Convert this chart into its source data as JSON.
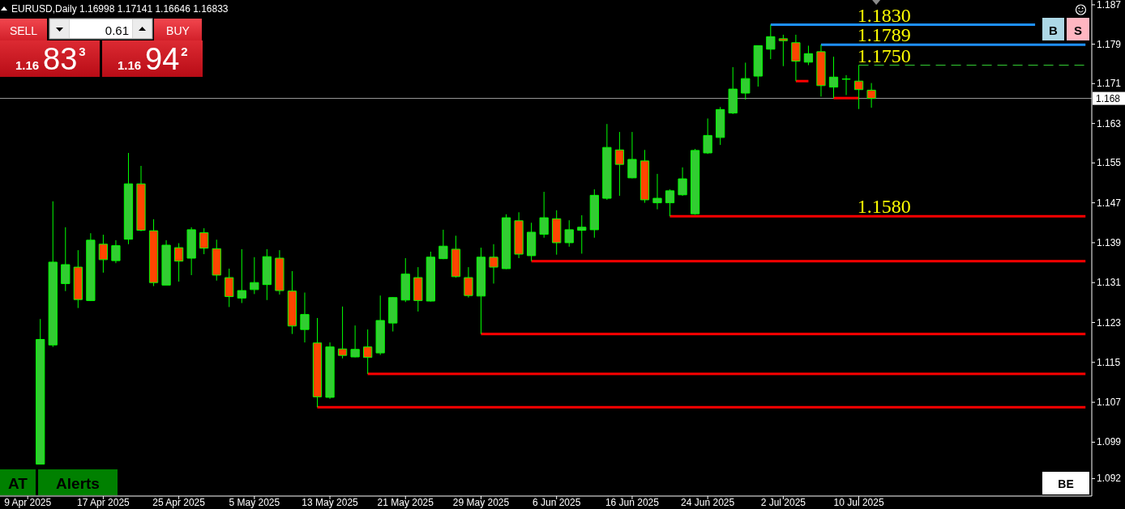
{
  "chart_data": {
    "type": "candlestick",
    "title": "EURUSD,Daily 1.16998 1.17141 1.16646 1.16833",
    "categories": [
      "9 Apr 2025",
      null,
      null,
      null,
      null,
      null,
      "17 Apr 2025",
      null,
      null,
      null,
      null,
      null,
      "25 Apr 2025",
      null,
      null,
      null,
      null,
      null,
      "5 May 2025",
      null,
      null,
      null,
      null,
      null,
      "13 May 2025",
      null,
      null,
      null,
      null,
      null,
      "21 May 2025",
      null,
      null,
      null,
      null,
      null,
      "29 May 2025",
      null,
      null,
      null,
      null,
      null,
      "6 Jun 2025",
      null,
      null,
      null,
      null,
      null,
      "16 Jun 2025",
      null,
      null,
      null,
      null,
      null,
      "24 Jun 2025",
      null,
      null,
      null,
      null,
      null,
      "2 Jul 2025",
      null,
      null,
      null,
      null,
      null,
      "10 Jul 2025",
      null,
      null,
      null,
      null,
      null,
      null,
      null,
      null,
      null,
      null,
      null,
      null,
      null,
      null,
      null,
      null,
      null,
      null
    ],
    "ohlc": [
      null,
      [
        1.095,
        1.1241,
        1.095,
        1.12
      ],
      [
        1.1189,
        1.1477,
        1.1185,
        1.1355
      ],
      [
        1.1312,
        1.1425,
        1.1297,
        1.135
      ],
      [
        1.1345,
        1.1379,
        1.1263,
        1.128
      ],
      [
        1.1278,
        1.1413,
        1.1277,
        1.1399
      ],
      [
        1.1391,
        1.141,
        1.1334,
        1.136
      ],
      [
        1.1358,
        1.1399,
        1.1353,
        1.1388
      ],
      [
        1.1401,
        1.1574,
        1.1391,
        1.1512
      ],
      [
        1.1512,
        1.1548,
        1.1417,
        1.1419
      ],
      [
        1.1418,
        1.1441,
        1.1307,
        1.1314
      ],
      [
        1.1309,
        1.1399,
        1.1309,
        1.1389
      ],
      [
        1.1384,
        1.1393,
        1.1316,
        1.1357
      ],
      [
        1.1363,
        1.1425,
        1.1329,
        1.142
      ],
      [
        1.1414,
        1.1423,
        1.1371,
        1.1383
      ],
      [
        1.1382,
        1.14,
        1.1318,
        1.1329
      ],
      [
        1.1324,
        1.1342,
        1.1265,
        1.1286
      ],
      [
        1.1283,
        1.1381,
        1.1273,
        1.1298
      ],
      [
        1.13,
        1.1365,
        1.1291,
        1.1314
      ],
      [
        1.131,
        1.1381,
        1.1279,
        1.1366
      ],
      [
        1.1363,
        1.1379,
        1.129,
        1.1298
      ],
      [
        1.1297,
        1.1337,
        1.1211,
        1.1227
      ],
      [
        1.122,
        1.1294,
        1.1194,
        1.125
      ],
      [
        1.1193,
        1.1243,
        1.1064,
        1.1085
      ],
      [
        1.1084,
        1.1194,
        1.1081,
        1.1185
      ],
      [
        1.1181,
        1.1266,
        1.1162,
        1.1168
      ],
      [
        1.1165,
        1.1228,
        1.1164,
        1.118
      ],
      [
        1.1185,
        1.122,
        1.1131,
        1.1164
      ],
      [
        1.1173,
        1.1288,
        1.1169,
        1.1238
      ],
      [
        1.1233,
        1.1285,
        1.1216,
        1.1284
      ],
      [
        1.1279,
        1.1363,
        1.1275,
        1.1331
      ],
      [
        1.1324,
        1.1345,
        1.1256,
        1.1278
      ],
      [
        1.1277,
        1.1376,
        1.1276,
        1.1365
      ],
      [
        1.1362,
        1.142,
        1.1361,
        1.1387
      ],
      [
        1.1381,
        1.1408,
        1.1324,
        1.1326
      ],
      [
        1.1324,
        1.1345,
        1.1284,
        1.1288
      ],
      [
        1.1287,
        1.1384,
        1.1211,
        1.1365
      ],
      [
        1.1365,
        1.1391,
        1.1312,
        1.1345
      ],
      [
        1.1342,
        1.1451,
        1.1341,
        1.1444
      ],
      [
        1.1438,
        1.1455,
        1.1363,
        1.1371
      ],
      [
        1.1368,
        1.1434,
        1.1357,
        1.1415
      ],
      [
        1.1411,
        1.1496,
        1.1404,
        1.1444
      ],
      [
        1.1442,
        1.1459,
        1.137,
        1.1394
      ],
      [
        1.1394,
        1.1439,
        1.1386,
        1.142
      ],
      [
        1.1419,
        1.1449,
        1.1372,
        1.1425
      ],
      [
        1.142,
        1.1501,
        1.1404,
        1.1489
      ],
      [
        1.1483,
        1.1632,
        1.148,
        1.1585
      ],
      [
        1.158,
        1.1616,
        1.1488,
        1.1551
      ],
      [
        1.1524,
        1.1616,
        1.1523,
        1.1561
      ],
      [
        1.1558,
        1.158,
        1.1474,
        1.148
      ],
      [
        1.1474,
        1.1532,
        1.1461,
        1.1483
      ],
      [
        1.1474,
        1.1501,
        1.1447,
        1.1498
      ],
      [
        1.149,
        1.1545,
        1.1488,
        1.1522
      ],
      [
        1.1452,
        1.1582,
        1.145,
        1.1579
      ],
      [
        1.1574,
        1.1643,
        1.1572,
        1.1609
      ],
      [
        1.1605,
        1.1666,
        1.159,
        1.1661
      ],
      [
        1.1654,
        1.1746,
        1.1652,
        1.1702
      ],
      [
        1.1694,
        1.1755,
        1.1681,
        1.1723
      ],
      [
        1.1728,
        1.1789,
        1.1707,
        1.1789
      ],
      [
        1.1782,
        1.1831,
        1.1762,
        1.1807
      ],
      [
        1.1803,
        1.1811,
        1.1748,
        1.1799
      ],
      [
        1.1795,
        1.1811,
        1.1718,
        1.1758
      ],
      [
        1.1756,
        1.1789,
        1.175,
        1.1773
      ],
      [
        1.1777,
        1.1791,
        1.1687,
        1.1709
      ],
      [
        1.1706,
        1.1767,
        1.1684,
        1.1726
      ],
      [
        1.1722,
        1.173,
        1.169,
        1.1722
      ],
      [
        1.1718,
        1.175,
        1.1662,
        1.1701
      ],
      [
        1.16998,
        1.17141,
        1.16646,
        1.16833
      ],
      null,
      null,
      null,
      null,
      null,
      null,
      null,
      null,
      null,
      null,
      null,
      null,
      null,
      null,
      null,
      null,
      null
    ],
    "color": "#00ff00",
    "colors": [
      null,
      "#32cd32",
      "#32cd32",
      "#32cd32",
      "#ff4500",
      "#32cd32",
      "#ff4500",
      "#32cd32",
      "#32cd32",
      "#ff4500",
      "#ff4500",
      "#32cd32",
      "#ff4500",
      "#32cd32",
      "#ff4500",
      "#ff4500",
      "#ff4500",
      "#32cd32",
      "#32cd32",
      "#32cd32",
      "#ff4500",
      "#ff4500",
      "#32cd32",
      "#ff4500",
      "#32cd32",
      "#ff4500",
      "#32cd32",
      "#ff4500",
      "#32cd32",
      "#32cd32",
      "#32cd32",
      "#ff4500",
      "#32cd32",
      "#32cd32",
      "#ff4500",
      "#ff4500",
      "#32cd32",
      "#ff4500",
      "#32cd32",
      "#ff4500",
      "#32cd32",
      "#32cd32",
      "#ff4500",
      "#32cd32",
      "#32cd32",
      "#32cd32",
      "#32cd32",
      "#ff4500",
      "#32cd32",
      "#ff4500",
      "#32cd32",
      "#32cd32",
      "#32cd32",
      "#32cd32",
      "#32cd32",
      "#32cd32",
      "#32cd32",
      "#32cd32",
      "#32cd32",
      "#32cd32",
      "#ff4500",
      "#ff4500",
      "#32cd32",
      "#ff4500",
      "#32cd32",
      "#00ff00",
      "#ff4500",
      "#ff4500",
      null,
      null,
      null,
      null,
      null,
      null,
      null,
      null,
      null,
      null,
      null,
      null,
      null,
      null,
      null,
      null,
      null
    ],
    "series": [
      {
        "type": "line",
        "color": "#ff0000",
        "values": [
          null,
          null,
          null,
          null,
          null,
          null,
          null,
          null,
          null,
          null,
          null,
          null,
          null,
          null,
          null,
          null,
          null,
          null,
          null,
          null,
          null,
          null,
          null,
          1.1064,
          1.1064,
          1.1064,
          1.1064,
          1.1064,
          1.1064,
          1.1064,
          1.1064,
          1.1064,
          1.1064,
          1.1064,
          1.1064,
          1.1064,
          1.1064,
          1.1064,
          1.1064,
          1.1064,
          1.1064,
          1.1064,
          1.1064,
          1.1064,
          1.1064,
          1.1064,
          1.1064,
          1.1064,
          1.1064,
          1.1064,
          1.1064,
          1.1064,
          1.1064,
          1.1064,
          1.1064,
          1.1064,
          1.1064,
          1.1064,
          1.1064,
          1.1064,
          1.1064,
          1.1064,
          1.1064,
          1.1064,
          1.1064,
          1.1064,
          1.1064,
          1.1064,
          1.1064,
          1.1064,
          1.1064,
          1.1064,
          1.1064,
          1.1064,
          1.1064,
          1.1064,
          1.1064,
          1.1064,
          1.1064,
          1.1064,
          1.1064,
          1.1064,
          1.1064,
          1.1064,
          1.1064
        ]
      },
      {
        "type": "line",
        "color": "#ff0000",
        "values": [
          null,
          null,
          null,
          null,
          null,
          null,
          null,
          null,
          null,
          null,
          null,
          null,
          null,
          null,
          null,
          null,
          null,
          null,
          null,
          null,
          null,
          null,
          null,
          null,
          null,
          null,
          null,
          1.1131,
          1.1131,
          1.1131,
          1.1131,
          1.1131,
          1.1131,
          1.1131,
          1.1131,
          1.1131,
          1.1131,
          1.1131,
          1.1131,
          1.1131,
          1.1131,
          1.1131,
          1.1131,
          1.1131,
          1.1131,
          1.1131,
          1.1131,
          1.1131,
          1.1131,
          1.1131,
          1.1131,
          1.1131,
          1.1131,
          1.1131,
          1.1131,
          1.1131,
          1.1131,
          1.1131,
          1.1131,
          1.1131,
          1.1131,
          1.1131,
          1.1131,
          1.1131,
          1.1131,
          1.1131,
          1.1131,
          1.1131,
          1.1131,
          1.1131,
          1.1131,
          1.1131,
          1.1131,
          1.1131,
          1.1131,
          1.1131,
          1.1131,
          1.1131,
          1.1131,
          1.1131,
          1.1131,
          1.1131,
          1.1131,
          1.1131,
          1.1131
        ]
      },
      {
        "type": "line",
        "color": "#ff0000",
        "values": [
          null,
          null,
          null,
          null,
          null,
          null,
          null,
          null,
          null,
          null,
          null,
          null,
          null,
          null,
          null,
          null,
          null,
          null,
          null,
          null,
          null,
          null,
          null,
          null,
          null,
          null,
          null,
          null,
          null,
          null,
          null,
          null,
          null,
          null,
          null,
          null,
          1.1211,
          1.1211,
          1.1211,
          1.1211,
          1.1211,
          1.1211,
          1.1211,
          1.1211,
          1.1211,
          1.1211,
          1.1211,
          1.1211,
          1.1211,
          1.1211,
          1.1211,
          1.1211,
          1.1211,
          1.1211,
          1.1211,
          1.1211,
          1.1211,
          1.1211,
          1.1211,
          1.1211,
          1.1211,
          1.1211,
          1.1211,
          1.1211,
          1.1211,
          1.1211,
          1.1211,
          1.1211,
          1.1211,
          1.1211,
          1.1211,
          1.1211,
          1.1211,
          1.1211,
          1.1211,
          1.1211,
          1.1211,
          1.1211,
          1.1211,
          1.1211,
          1.1211,
          1.1211,
          1.1211,
          1.1211,
          1.1211
        ]
      },
      {
        "type": "line",
        "color": "#ff0000",
        "values": [
          null,
          null,
          null,
          null,
          null,
          null,
          null,
          null,
          null,
          null,
          null,
          null,
          null,
          null,
          null,
          null,
          null,
          null,
          null,
          null,
          null,
          null,
          null,
          null,
          null,
          null,
          null,
          null,
          null,
          null,
          null,
          null,
          null,
          null,
          null,
          null,
          null,
          null,
          null,
          null,
          1.1357,
          1.1357,
          1.1357,
          1.1357,
          1.1357,
          1.1357,
          1.1357,
          1.1357,
          1.1357,
          1.1357,
          1.1357,
          1.1357,
          1.1357,
          1.1357,
          1.1357,
          1.1357,
          1.1357,
          1.1357,
          1.1357,
          1.1357,
          1.1357,
          1.1357,
          1.1357,
          1.1357,
          1.1357,
          1.1357,
          1.1357,
          1.1357,
          1.1357,
          1.1357,
          1.1357,
          1.1357,
          1.1357,
          1.1357,
          1.1357,
          1.1357,
          1.1357,
          1.1357,
          1.1357,
          1.1357,
          1.1357,
          1.1357,
          1.1357,
          1.1357,
          1.1357
        ]
      },
      {
        "type": "line",
        "name": "1.1580",
        "color": "#ff0000",
        "values": [
          null,
          null,
          null,
          null,
          null,
          null,
          null,
          null,
          null,
          null,
          null,
          null,
          null,
          null,
          null,
          null,
          null,
          null,
          null,
          null,
          null,
          null,
          null,
          null,
          null,
          null,
          null,
          null,
          null,
          null,
          null,
          null,
          null,
          null,
          null,
          null,
          null,
          null,
          null,
          null,
          null,
          null,
          null,
          null,
          null,
          null,
          null,
          null,
          null,
          null,
          null,
          1.1447,
          1.1447,
          1.1447,
          1.1447,
          1.1447,
          1.1447,
          1.1447,
          1.1447,
          1.1447,
          1.1447,
          1.1447,
          1.1447,
          1.1447,
          1.1447,
          1.1447,
          1.1447,
          1.1447,
          1.1447,
          1.1447,
          1.1447,
          1.1447,
          1.1447,
          1.1447,
          1.1447,
          1.1447,
          1.1447,
          1.1447,
          1.1447,
          1.1447,
          1.1447,
          1.1447,
          1.1447,
          1.1447,
          1.1447
        ]
      },
      {
        "type": "line",
        "name": "1.1830",
        "color": "#1e90ff",
        "values": [
          null,
          null,
          null,
          null,
          null,
          null,
          null,
          null,
          null,
          null,
          null,
          null,
          null,
          null,
          null,
          null,
          null,
          null,
          null,
          null,
          null,
          null,
          null,
          null,
          null,
          null,
          null,
          null,
          null,
          null,
          null,
          null,
          null,
          null,
          null,
          null,
          null,
          null,
          null,
          null,
          null,
          null,
          null,
          null,
          null,
          null,
          null,
          null,
          null,
          null,
          null,
          null,
          null,
          null,
          null,
          null,
          null,
          null,
          null,
          1.1831,
          1.1831,
          1.1831,
          1.1831,
          1.1831,
          1.1831,
          1.1831,
          1.1831,
          1.1831,
          1.1831,
          1.1831,
          1.1831,
          1.1831,
          1.1831,
          1.1831,
          1.1831,
          1.1831,
          1.1831,
          1.1831,
          1.1831,
          1.1831,
          1.1831,
          null,
          null,
          null,
          null
        ]
      },
      {
        "type": "line",
        "name": "1.1789",
        "color": "#1e90ff",
        "values": [
          null,
          null,
          null,
          null,
          null,
          null,
          null,
          null,
          null,
          null,
          null,
          null,
          null,
          null,
          null,
          null,
          null,
          null,
          null,
          null,
          null,
          null,
          null,
          null,
          null,
          null,
          null,
          null,
          null,
          null,
          null,
          null,
          null,
          null,
          null,
          null,
          null,
          null,
          null,
          null,
          null,
          null,
          null,
          null,
          null,
          null,
          null,
          null,
          null,
          null,
          null,
          null,
          null,
          null,
          null,
          null,
          null,
          null,
          null,
          null,
          null,
          null,
          null,
          1.1791,
          1.1791,
          1.1791,
          1.1791,
          1.1791,
          1.1791,
          1.1791,
          1.1791,
          1.1791,
          1.1791,
          1.1791,
          1.1791,
          1.1791,
          1.1791,
          1.1791,
          1.1791,
          1.1791,
          1.1791,
          1.1791,
          1.1791,
          1.1791,
          1.1791
        ]
      },
      {
        "type": "line",
        "name": "1.1750",
        "color": "#32cd32",
        "line_style": "dashed",
        "values": [
          null,
          null,
          null,
          null,
          null,
          null,
          null,
          null,
          null,
          null,
          null,
          null,
          null,
          null,
          null,
          null,
          null,
          null,
          null,
          null,
          null,
          null,
          null,
          null,
          null,
          null,
          null,
          null,
          null,
          null,
          null,
          null,
          null,
          null,
          null,
          null,
          null,
          null,
          null,
          null,
          null,
          null,
          null,
          null,
          null,
          null,
          null,
          null,
          null,
          null,
          null,
          null,
          null,
          null,
          null,
          null,
          null,
          null,
          null,
          null,
          null,
          null,
          null,
          null,
          null,
          null,
          1.175,
          1.175,
          1.175,
          1.175,
          1.175,
          1.175,
          1.175,
          1.175,
          1.175,
          1.175,
          1.175,
          1.175,
          1.175,
          1.175,
          1.175,
          1.175,
          1.175,
          1.175,
          1.175
        ]
      },
      {
        "type": "line",
        "color": "#ff0000",
        "values": [
          null,
          null,
          null,
          null,
          null,
          null,
          null,
          null,
          null,
          null,
          null,
          null,
          null,
          null,
          null,
          null,
          null,
          null,
          null,
          null,
          null,
          null,
          null,
          null,
          null,
          null,
          null,
          null,
          null,
          null,
          null,
          null,
          null,
          null,
          null,
          null,
          null,
          null,
          null,
          null,
          null,
          null,
          null,
          null,
          null,
          null,
          null,
          null,
          null,
          null,
          null,
          null,
          null,
          null,
          null,
          null,
          null,
          null,
          null,
          null,
          null,
          1.1718,
          1.1718,
          null,
          null,
          null,
          null,
          null,
          null,
          null,
          null,
          null,
          null,
          null,
          null,
          null,
          null,
          null,
          null,
          null,
          null,
          null,
          null,
          null,
          null
        ]
      },
      {
        "type": "line",
        "color": "#ff0000",
        "values": [
          null,
          null,
          null,
          null,
          null,
          null,
          null,
          null,
          null,
          null,
          null,
          null,
          null,
          null,
          null,
          null,
          null,
          null,
          null,
          null,
          null,
          null,
          null,
          null,
          null,
          null,
          null,
          null,
          null,
          null,
          null,
          null,
          null,
          null,
          null,
          null,
          null,
          null,
          null,
          null,
          null,
          null,
          null,
          null,
          null,
          null,
          null,
          null,
          null,
          null,
          null,
          null,
          null,
          null,
          null,
          null,
          null,
          null,
          null,
          null,
          null,
          null,
          null,
          null,
          1.1684,
          1.1684,
          1.1684,
          null,
          null,
          null,
          null,
          null,
          null,
          null,
          null,
          null,
          null,
          null,
          null,
          null,
          null,
          null,
          null,
          null,
          null
        ]
      }
    ],
    "ylim": [
      1.0886,
      1.1879
    ],
    "yticks": [
      {
        "value": 1.1871,
        "label": "1.187"
      },
      {
        "value": 1.1792,
        "label": "1.179"
      },
      {
        "value": 1.1713,
        "label": "1.171"
      },
      {
        "value": 1.1633,
        "label": "1.163"
      },
      {
        "value": 1.1554,
        "label": "1.155"
      },
      {
        "value": 1.1474,
        "label": "1.147"
      },
      {
        "value": 1.1394,
        "label": "1.139"
      },
      {
        "value": 1.1314,
        "label": "1.131"
      },
      {
        "value": 1.1234,
        "label": "1.123"
      },
      {
        "value": 1.1154,
        "label": "1.115"
      },
      {
        "value": 1.1074,
        "label": "1.107"
      },
      {
        "value": 1.0994,
        "label": "1.099"
      },
      {
        "value": 1.0921,
        "label": "1.092"
      }
    ],
    "ref_lines": [
      {
        "axis": "y",
        "value": 1.16833,
        "label": "1.168",
        "color": "#a0a0a0"
      }
    ],
    "annotations": [
      "SELL",
      "0.61",
      "BUY",
      "1.16",
      "83$^{3}$",
      "1.16",
      "94$^{2}$",
      "B",
      "S",
      "AT",
      "Alerts",
      "BE"
    ]
  }
}
